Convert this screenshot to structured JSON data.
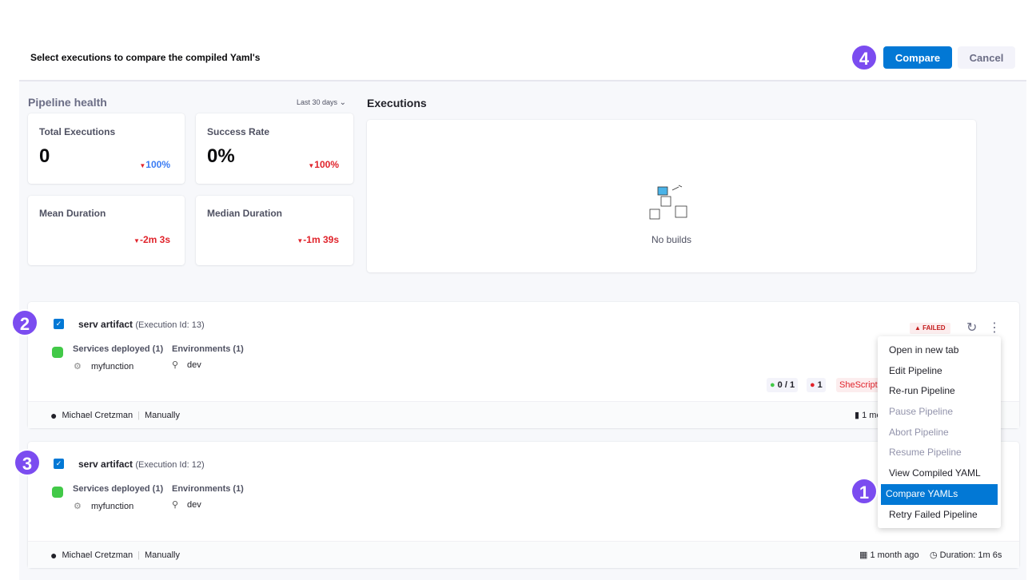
{
  "header": {
    "title": "Select executions to compare the compiled Yaml's",
    "compare_label": "Compare",
    "cancel_label": "Cancel"
  },
  "health": {
    "title": "Pipeline health",
    "range": "Last 30 days",
    "stats": [
      {
        "label": "Total Executions",
        "value": "0",
        "delta": "100%",
        "delta_color": "#3b7cf4"
      },
      {
        "label": "Success Rate",
        "value": "0%",
        "delta": "100%",
        "delta_color": "#e0232b"
      },
      {
        "label": "Mean Duration",
        "value": "",
        "delta": "-2m 3s",
        "delta_color": "#e0232b"
      },
      {
        "label": "Median Duration",
        "value": "",
        "delta": "-1m 39s",
        "delta_color": "#e0232b"
      }
    ]
  },
  "executions": {
    "title": "Executions",
    "empty": "No builds"
  },
  "cards": [
    {
      "name": "serv artifact",
      "exec_id": "(Execution Id: 13)",
      "services_label": "Services deployed (1)",
      "envs_label": "Environments (1)",
      "service": "myfunction",
      "env": "dev",
      "user": "Michael Cretzman",
      "trigger": "Manually",
      "status": "FAILED",
      "success": "0 / 1",
      "failed": "1",
      "stage": "SheScript",
      "time": "1 mo"
    },
    {
      "name": "serv artifact",
      "exec_id": "(Execution Id: 12)",
      "services_label": "Services deployed (1)",
      "envs_label": "Environments (1)",
      "service": "myfunction",
      "env": "dev",
      "user": "Michael Cretzman",
      "trigger": "Manually",
      "time": "1 month ago",
      "duration": "Duration: 1m 6s"
    }
  ],
  "menu": {
    "items": [
      {
        "label": "Open in new tab",
        "state": "enabled"
      },
      {
        "label": "Edit Pipeline",
        "state": "enabled"
      },
      {
        "label": "Re-run Pipeline",
        "state": "enabled"
      },
      {
        "label": "Pause Pipeline",
        "state": "disabled"
      },
      {
        "label": "Abort Pipeline",
        "state": "disabled"
      },
      {
        "label": "Resume Pipeline",
        "state": "disabled"
      },
      {
        "label": "View Compiled YAML",
        "state": "enabled"
      },
      {
        "label": "Compare YAMLs",
        "state": "highlighted"
      },
      {
        "label": "Retry Failed Pipeline",
        "state": "enabled"
      }
    ]
  },
  "steps": [
    "1",
    "2",
    "3",
    "4"
  ]
}
